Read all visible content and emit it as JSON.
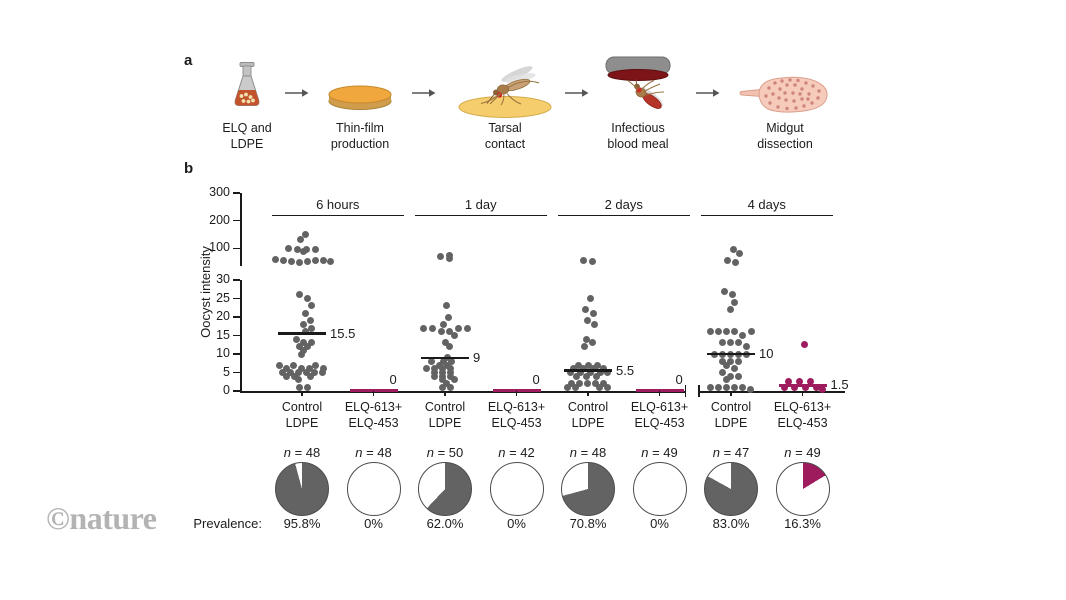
{
  "watermark": "©nature",
  "colors": {
    "control": "#636363",
    "treated": "#9e1b5e",
    "axis": "#1a1a1a",
    "film_yellow": "#f5cd6c",
    "blood_red": "#7d1417"
  },
  "panel_a": {
    "label": "a",
    "steps": [
      {
        "icon": "flask-icon",
        "label": "ELQ and\nLDPE"
      },
      {
        "icon": "petri-dish-icon",
        "label": "Thin-film\nproduction"
      },
      {
        "icon": "mosquito-tarsal-contact-icon",
        "label": "Tarsal\ncontact"
      },
      {
        "icon": "blood-feeder-icon",
        "label": "Infectious\nblood meal"
      },
      {
        "icon": "midgut-icon",
        "label": "Midgut\ndissection"
      }
    ]
  },
  "panel_b": {
    "label": "b"
  },
  "chart_data": {
    "type": "scatter",
    "subtype": "beeswarm-with-broken-y-axis",
    "ylabel": "Oocyst intensity",
    "n_symbol": "n",
    "prevalence_caption": "Prevalence:",
    "y_axis": {
      "upper_ticks": [
        300,
        200,
        100
      ],
      "lower_ticks": [
        30,
        25,
        20,
        15,
        10,
        5,
        0
      ],
      "upper_range": [
        40,
        300
      ],
      "lower_range": [
        0,
        30
      ],
      "broken": true
    },
    "x_axis": {
      "break_before_group": "4 days"
    },
    "groups": [
      {
        "label": "6 hours",
        "columns": [
          {
            "condition": "Control\nLDPE",
            "color_key": "control",
            "n": 48,
            "prevalence": "95.8%",
            "median": 15.5,
            "points": [
              [
                150,
                3
              ],
              [
                133,
                -2
              ],
              [
                100,
                -14
              ],
              [
                97,
                -5
              ],
              [
                96,
                13
              ],
              [
                95,
                4
              ],
              [
                88,
                1
              ],
              [
                60,
                -27
              ],
              [
                58,
                21
              ],
              [
                56,
                13
              ],
              [
                55,
                -19
              ],
              [
                53,
                5
              ],
              [
                52,
                -11
              ],
              [
                51,
                28
              ],
              [
                50,
                -3
              ],
              [
                26,
                -3
              ],
              [
                25,
                5
              ],
              [
                23,
                9
              ],
              [
                21,
                3
              ],
              [
                19,
                8
              ],
              [
                18,
                1
              ],
              [
                17,
                9
              ],
              [
                16,
                3
              ],
              [
                14,
                -6
              ],
              [
                13,
                1
              ],
              [
                13,
                9
              ],
              [
                12,
                -3
              ],
              [
                12,
                5
              ],
              [
                11,
                1
              ],
              [
                10,
                -1
              ],
              [
                7,
                -23
              ],
              [
                7,
                -9
              ],
              [
                7,
                13
              ],
              [
                6,
                -16
              ],
              [
                6,
                -1
              ],
              [
                6,
                7
              ],
              [
                6,
                21
              ],
              [
                5,
                -20
              ],
              [
                5,
                -12
              ],
              [
                5,
                -4
              ],
              [
                5,
                4
              ],
              [
                5,
                12
              ],
              [
                5,
                20
              ],
              [
                4,
                -16
              ],
              [
                4,
                -8
              ],
              [
                4,
                8
              ],
              [
                3,
                -4
              ],
              [
                1,
                -3
              ],
              [
                1,
                5
              ]
            ]
          },
          {
            "condition": "ELQ-613+\nELQ-453",
            "color_key": "treated",
            "n": 48,
            "prevalence": "0%",
            "median": 0,
            "points": []
          }
        ]
      },
      {
        "label": "1 day",
        "columns": [
          {
            "condition": "Control\nLDPE",
            "color_key": "control",
            "n": 50,
            "prevalence": "62.0%",
            "median": 9,
            "points": [
              [
                76,
                4
              ],
              [
                71,
                -5
              ],
              [
                63,
                4
              ],
              [
                23,
                1
              ],
              [
                20,
                3
              ],
              [
                18,
                -2
              ],
              [
                17,
                -22
              ],
              [
                17,
                -13
              ],
              [
                17,
                13
              ],
              [
                17,
                22
              ],
              [
                16,
                -4
              ],
              [
                16,
                4
              ],
              [
                15,
                9
              ],
              [
                13,
                0
              ],
              [
                12,
                4
              ],
              [
                9,
                2
              ],
              [
                8,
                -14
              ],
              [
                8,
                -2
              ],
              [
                8,
                6
              ],
              [
                7,
                -6
              ],
              [
                7,
                2
              ],
              [
                6,
                -19
              ],
              [
                6,
                -11
              ],
              [
                6,
                -3
              ],
              [
                6,
                5
              ],
              [
                5,
                -11
              ],
              [
                5,
                -3
              ],
              [
                5,
                5
              ],
              [
                4,
                -11
              ],
              [
                4,
                -3
              ],
              [
                4,
                5
              ],
              [
                3,
                -3
              ],
              [
                3,
                9
              ],
              [
                2,
                1
              ],
              [
                1,
                -3
              ],
              [
                1,
                5
              ]
            ]
          },
          {
            "condition": "ELQ-613+\nELQ-453",
            "color_key": "treated",
            "n": 42,
            "prevalence": "0%",
            "median": 0,
            "points": []
          }
        ]
      },
      {
        "label": "2 days",
        "columns": [
          {
            "condition": "Control\nLDPE",
            "color_key": "control",
            "n": 48,
            "prevalence": "70.8%",
            "median": 5.5,
            "points": [
              [
                58,
                -5
              ],
              [
                54,
                4
              ],
              [
                25,
                2
              ],
              [
                22,
                -3
              ],
              [
                21,
                5
              ],
              [
                19,
                -1
              ],
              [
                18,
                6
              ],
              [
                14,
                -2
              ],
              [
                13,
                4
              ],
              [
                12,
                -4
              ],
              [
                7,
                -10
              ],
              [
                7,
                0
              ],
              [
                7,
                9
              ],
              [
                6,
                -15
              ],
              [
                6,
                -5
              ],
              [
                6,
                5
              ],
              [
                6,
                15
              ],
              [
                5,
                -18
              ],
              [
                5,
                -8
              ],
              [
                5,
                2
              ],
              [
                5,
                12
              ],
              [
                5,
                19
              ],
              [
                4,
                -12
              ],
              [
                4,
                -2
              ],
              [
                4,
                8
              ],
              [
                2,
                -17
              ],
              [
                2,
                -9
              ],
              [
                2,
                -1
              ],
              [
                2,
                7
              ],
              [
                2,
                15
              ],
              [
                1,
                -21
              ],
              [
                1,
                -13
              ],
              [
                1,
                11
              ],
              [
                1,
                19
              ]
            ]
          },
          {
            "condition": "ELQ-613+\nELQ-453",
            "color_key": "treated",
            "n": 49,
            "prevalence": "0%",
            "median": 0,
            "points": []
          }
        ]
      },
      {
        "label": "4 days",
        "columns": [
          {
            "condition": "Control\nLDPE",
            "color_key": "control",
            "n": 47,
            "prevalence": "83.0%",
            "median": 10,
            "points": [
              [
                97,
                2
              ],
              [
                83,
                8
              ],
              [
                56,
                -4
              ],
              [
                50,
                4
              ],
              [
                27,
                -7
              ],
              [
                26,
                1
              ],
              [
                24,
                3
              ],
              [
                22,
                -1
              ],
              [
                16,
                -21
              ],
              [
                16,
                -13
              ],
              [
                16,
                -5
              ],
              [
                16,
                3
              ],
              [
                16,
                20
              ],
              [
                15,
                11
              ],
              [
                13,
                -9
              ],
              [
                13,
                -1
              ],
              [
                13,
                7
              ],
              [
                12,
                15
              ],
              [
                10,
                -17
              ],
              [
                10,
                -9
              ],
              [
                10,
                -1
              ],
              [
                10,
                7
              ],
              [
                10,
                15
              ],
              [
                8,
                -9
              ],
              [
                8,
                -1
              ],
              [
                8,
                7
              ],
              [
                7,
                -5
              ],
              [
                6,
                3
              ],
              [
                5,
                -9
              ],
              [
                4,
                -1
              ],
              [
                4,
                7
              ],
              [
                3,
                -5
              ],
              [
                1,
                -21
              ],
              [
                1,
                -13
              ],
              [
                1,
                -5
              ],
              [
                1,
                3
              ],
              [
                1,
                11
              ],
              [
                0.5,
                19
              ]
            ]
          },
          {
            "condition": "ELQ-613+\nELQ-453",
            "color_key": "treated",
            "n": 49,
            "prevalence": "16.3%",
            "median": 1.5,
            "points": [
              [
                12.5,
                2
              ],
              [
                2.5,
                -14
              ],
              [
                2.5,
                -3
              ],
              [
                2.5,
                8
              ],
              [
                1,
                -18
              ],
              [
                1,
                -8
              ],
              [
                1,
                3
              ],
              [
                1,
                14
              ],
              [
                0.5,
                20
              ]
            ]
          }
        ]
      }
    ]
  }
}
